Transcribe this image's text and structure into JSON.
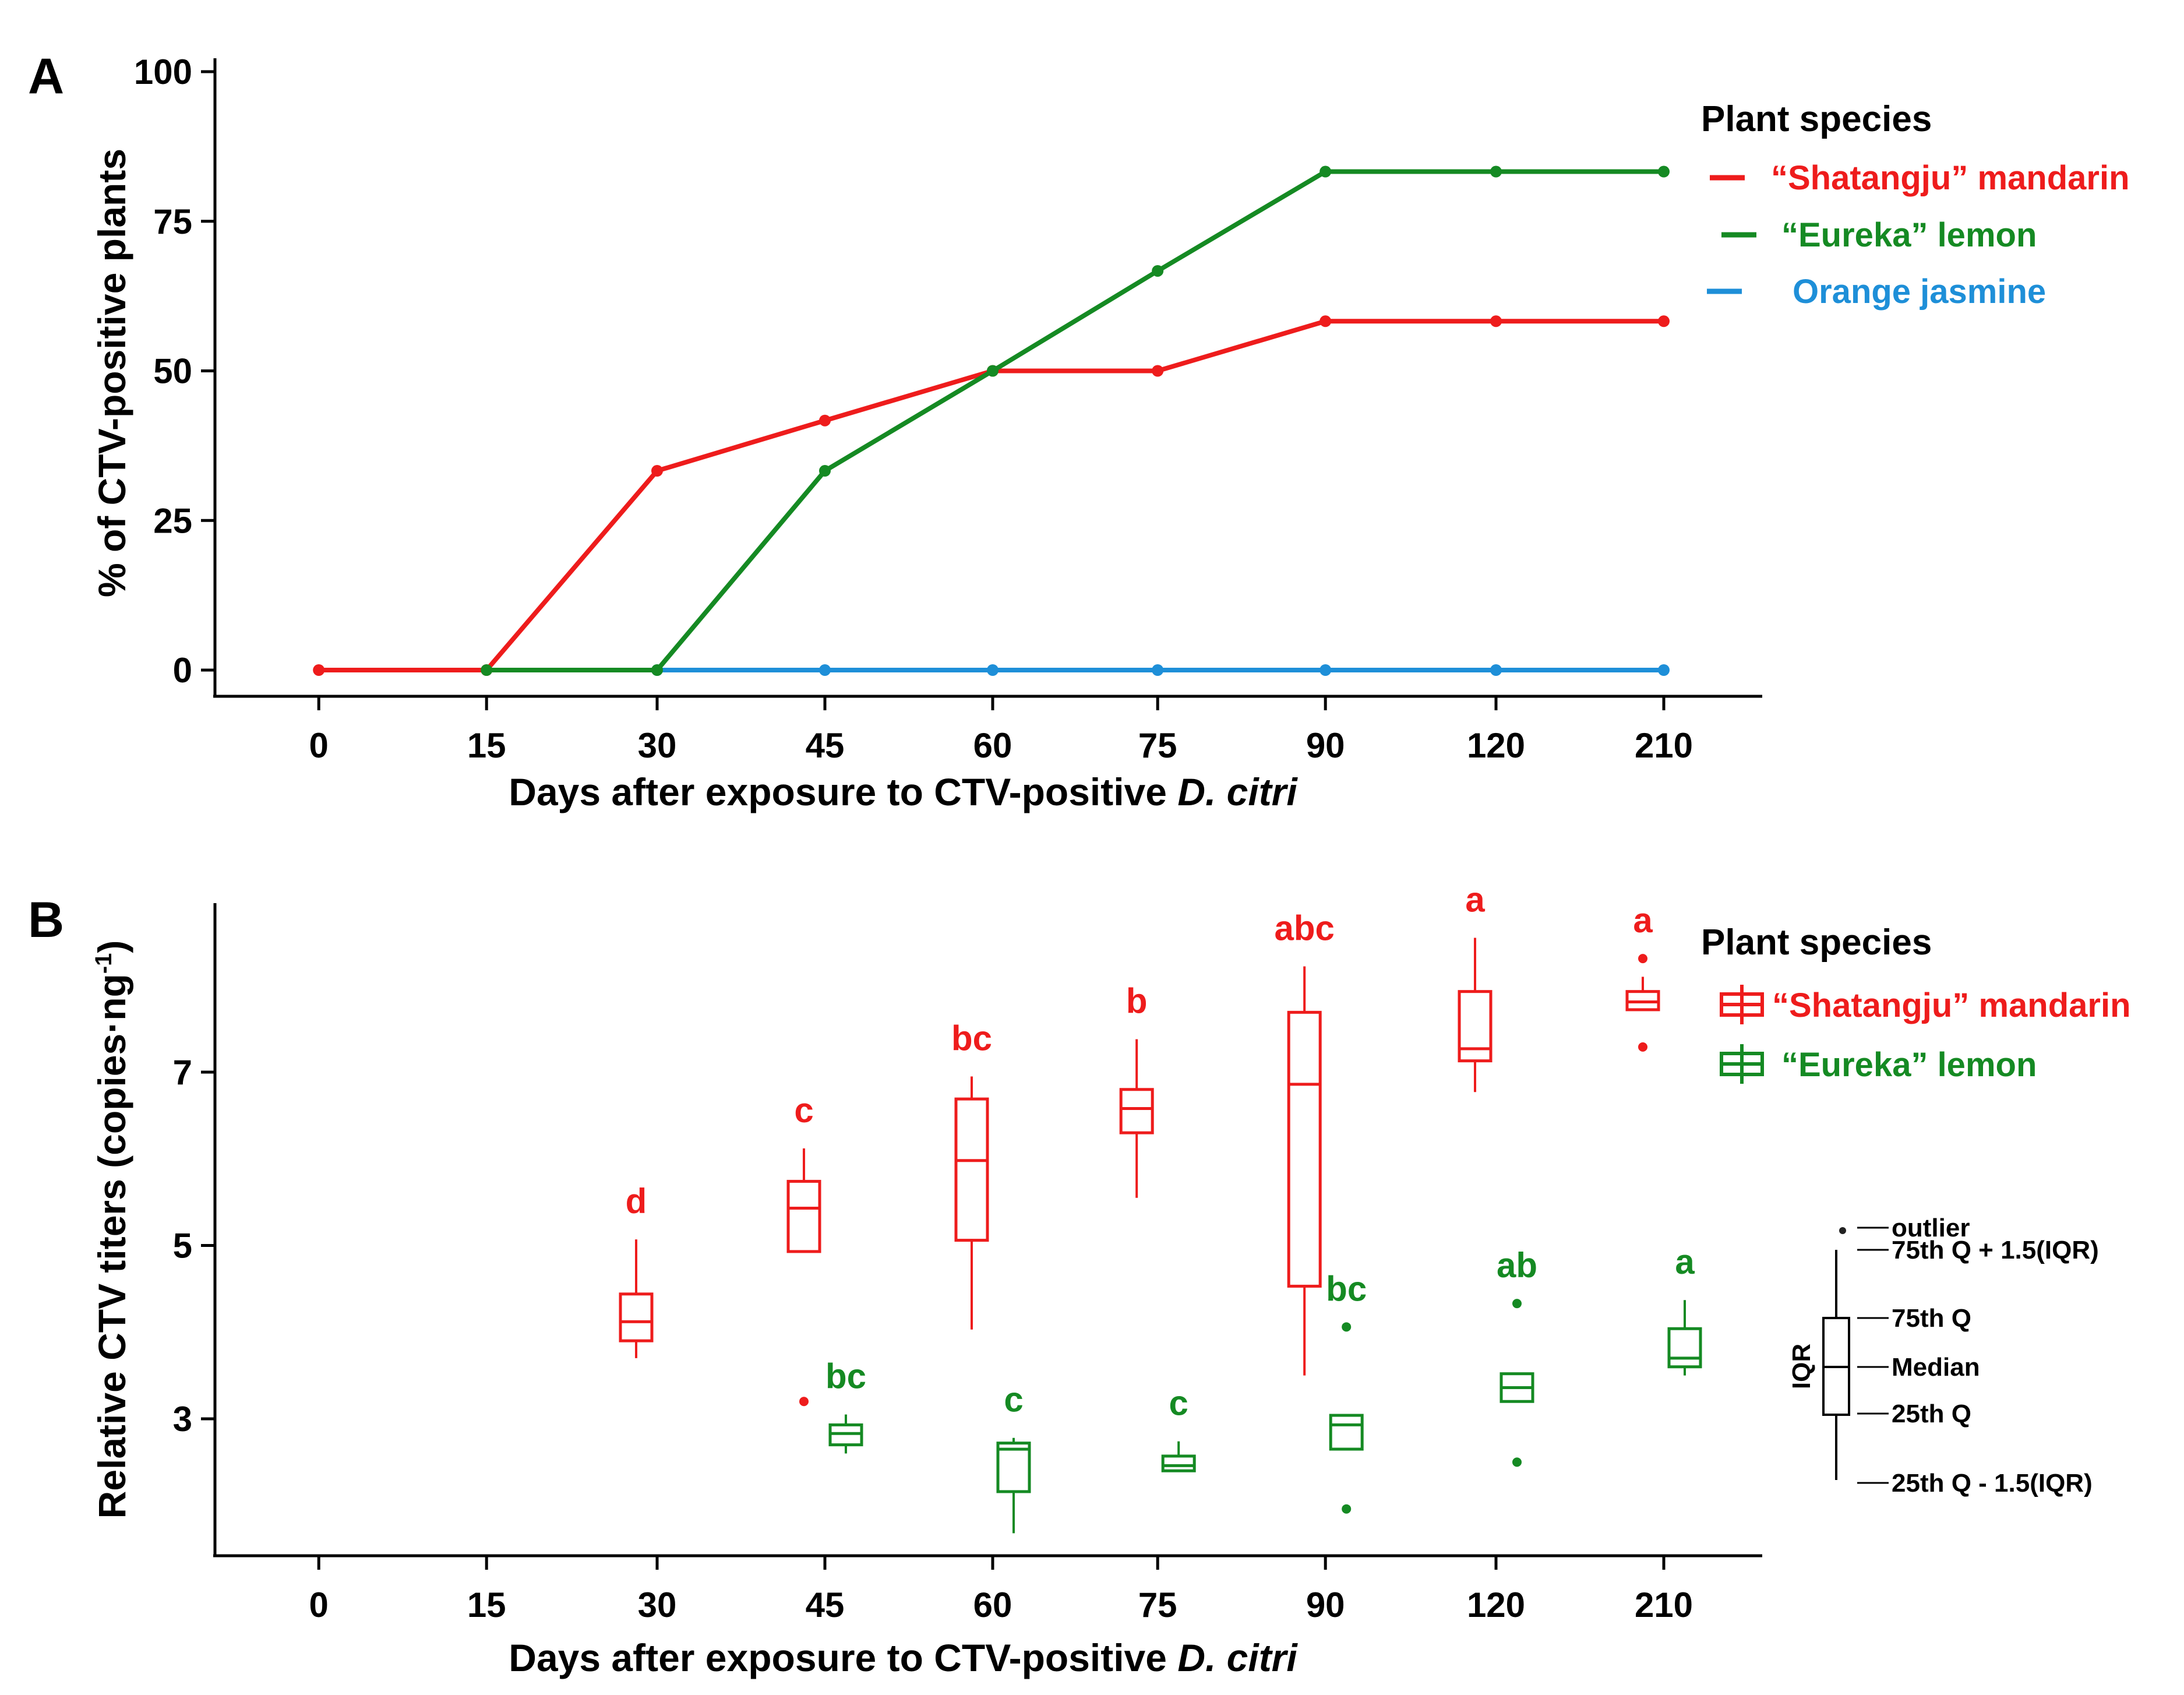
{
  "panel_labels": [
    "A",
    "B"
  ],
  "colors": {
    "mandarin": "#ee1c1c",
    "lemon": "#158a23",
    "jasmine": "#1e8fd8"
  },
  "chart_data": [
    {
      "type": "line",
      "panel": "A",
      "title": "",
      "xlabel_prefix": "Days after exposure to CTV-positive ",
      "xlabel_italic": "D. citri",
      "ylabel": "% of CTV-positive plants",
      "categories": [
        "0",
        "15",
        "30",
        "45",
        "60",
        "75",
        "90",
        "120",
        "210"
      ],
      "ylim": [
        0,
        100
      ],
      "yticks": [
        "0",
        "25",
        "50",
        "75",
        "100"
      ],
      "legend_title": "Plant species",
      "series": [
        {
          "name": "“Shatangju” mandarin",
          "color_key": "mandarin",
          "values": [
            0,
            0,
            33.3,
            41.7,
            50,
            50,
            58.3,
            58.3,
            58.3
          ]
        },
        {
          "name": "“Eureka” lemon",
          "color_key": "lemon",
          "values": [
            null,
            0,
            0,
            33.3,
            50,
            66.7,
            83.3,
            83.3,
            83.3
          ]
        },
        {
          "name": "Orange jasmine",
          "color_key": "jasmine",
          "values": [
            null,
            null,
            0,
            0,
            0,
            0,
            0,
            0,
            0
          ]
        }
      ]
    },
    {
      "type": "box",
      "panel": "B",
      "title": "",
      "xlabel_prefix": "Days after exposure to CTV-positive ",
      "xlabel_italic": "D. citri",
      "ylabel": "Relative CTV titers (copies·ng",
      "ylabel_sup": "-1",
      "ylabel_end": ")",
      "categories": [
        "0",
        "15",
        "30",
        "45",
        "60",
        "75",
        "90",
        "120",
        "210"
      ],
      "yticks": [
        "3",
        "5",
        "7"
      ],
      "ylim": [
        1.5,
        9.0
      ],
      "legend_title": "Plant species",
      "series": [
        {
          "name": "“Shatangju” mandarin",
          "color_key": "mandarin",
          "boxes": [
            {
              "category": "30",
              "whisker_low": 3.7,
              "q1": 3.9,
              "median": 4.12,
              "q3": 4.44,
              "whisker_high": 5.07,
              "outliers": [],
              "letter": "d"
            },
            {
              "category": "45",
              "whisker_low": 4.93,
              "q1": 4.93,
              "median": 5.43,
              "q3": 5.74,
              "whisker_high": 6.12,
              "outliers": [
                3.2
              ],
              "letter": "c"
            },
            {
              "category": "60",
              "whisker_low": 4.03,
              "q1": 5.06,
              "median": 5.98,
              "q3": 6.69,
              "whisker_high": 6.95,
              "outliers": [],
              "letter": "bc"
            },
            {
              "category": "75",
              "whisker_low": 5.55,
              "q1": 6.3,
              "median": 6.58,
              "q3": 6.8,
              "whisker_high": 7.38,
              "outliers": [],
              "letter": "b"
            },
            {
              "category": "90",
              "whisker_low": 3.5,
              "q1": 4.53,
              "median": 6.86,
              "q3": 7.69,
              "whisker_high": 8.22,
              "outliers": [],
              "letter": "abc"
            },
            {
              "category": "120",
              "whisker_low": 6.77,
              "q1": 7.13,
              "median": 7.27,
              "q3": 7.93,
              "whisker_high": 8.55,
              "outliers": [],
              "letter": "a"
            },
            {
              "category": "210",
              "whisker_low": 7.72,
              "q1": 7.72,
              "median": 7.81,
              "q3": 7.93,
              "whisker_high": 8.1,
              "outliers": [
                8.31,
                7.29
              ],
              "letter": "a"
            }
          ]
        },
        {
          "name": "“Eureka” lemon",
          "color_key": "lemon",
          "boxes": [
            {
              "category": "45",
              "whisker_low": 2.6,
              "q1": 2.7,
              "median": 2.83,
              "q3": 2.93,
              "whisker_high": 3.05,
              "outliers": [],
              "letter": "bc"
            },
            {
              "category": "60",
              "whisker_low": 1.68,
              "q1": 2.16,
              "median": 2.65,
              "q3": 2.72,
              "whisker_high": 2.78,
              "outliers": [],
              "letter": "c"
            },
            {
              "category": "75",
              "whisker_low": 2.4,
              "q1": 2.4,
              "median": 2.46,
              "q3": 2.57,
              "whisker_high": 2.74,
              "outliers": [],
              "letter": "c"
            },
            {
              "category": "90",
              "whisker_low": 2.65,
              "q1": 2.65,
              "median": 2.93,
              "q3": 3.04,
              "whisker_high": 3.04,
              "outliers": [
                4.06,
                1.96
              ],
              "letter": "bc"
            },
            {
              "category": "120",
              "whisker_low": 3.2,
              "q1": 3.2,
              "median": 3.36,
              "q3": 3.52,
              "whisker_high": 3.52,
              "outliers": [
                4.33,
                2.5
              ],
              "letter": "ab"
            },
            {
              "category": "210",
              "whisker_low": 3.5,
              "q1": 3.6,
              "median": 3.7,
              "q3": 4.04,
              "whisker_high": 4.37,
              "outliers": [],
              "letter": "a"
            }
          ]
        }
      ],
      "box_key": {
        "labels": [
          "outlier",
          "75th Q + 1.5(IQR)",
          "75th Q",
          "Median",
          "25th Q",
          "25th Q - 1.5(IQR)"
        ],
        "iqr_label": "IQR"
      }
    }
  ]
}
